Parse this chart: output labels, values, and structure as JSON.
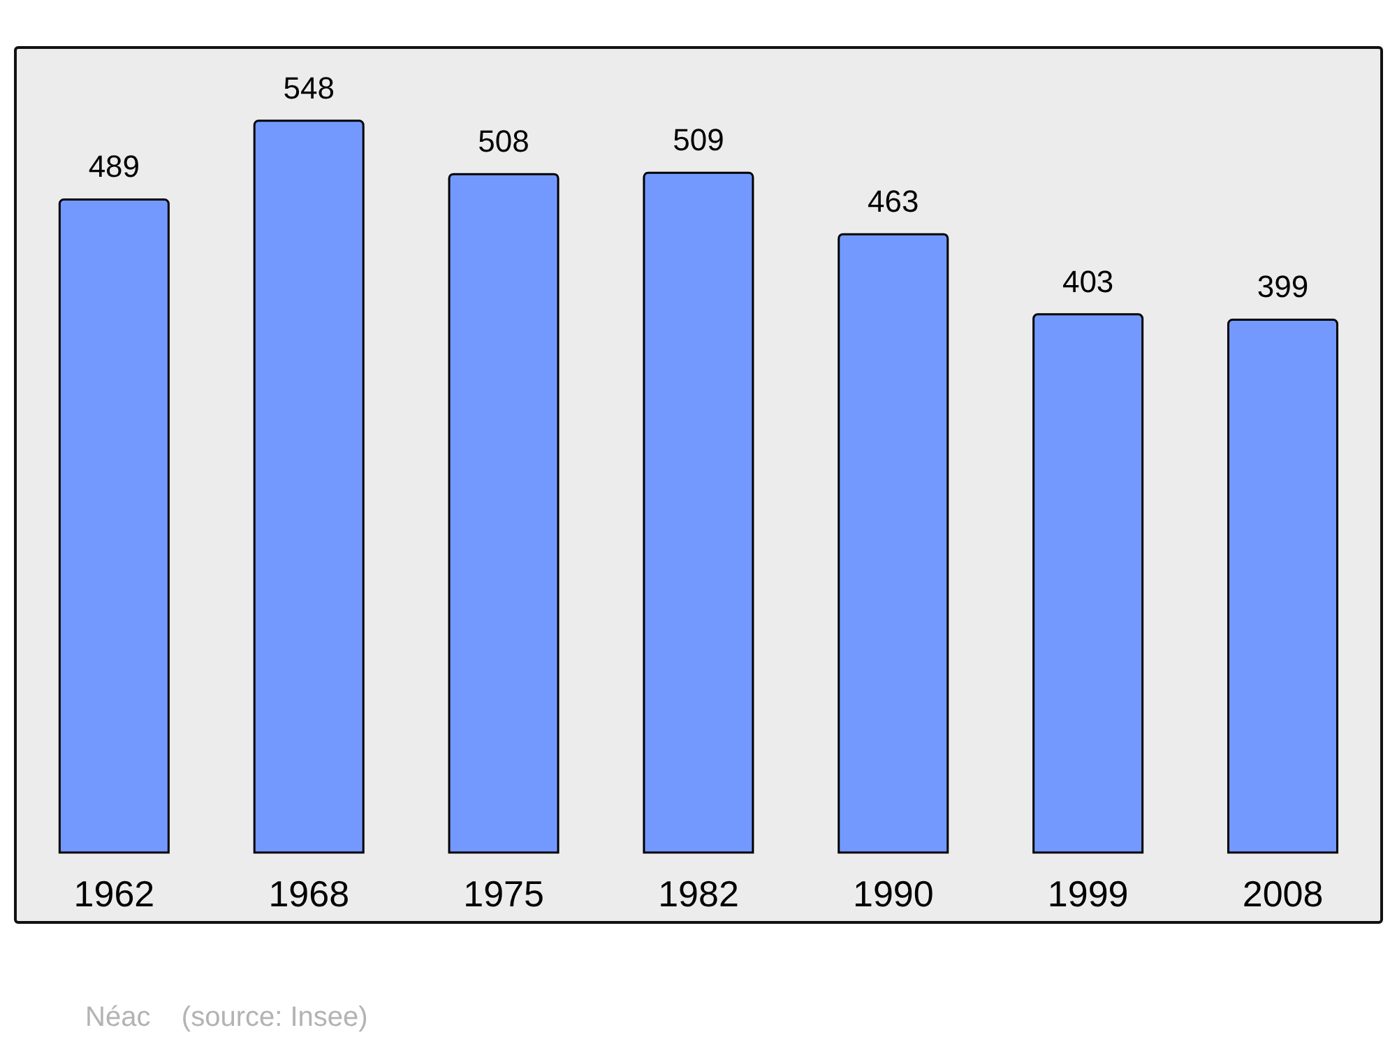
{
  "chart_data": {
    "type": "bar",
    "categories": [
      "1962",
      "1968",
      "1975",
      "1982",
      "1990",
      "1999",
      "2008"
    ],
    "values": [
      489,
      548,
      508,
      509,
      463,
      403,
      399
    ],
    "color": "#7399ff",
    "data_labels": true,
    "annotations": [
      "Néac    (source: Insee)"
    ]
  }
}
